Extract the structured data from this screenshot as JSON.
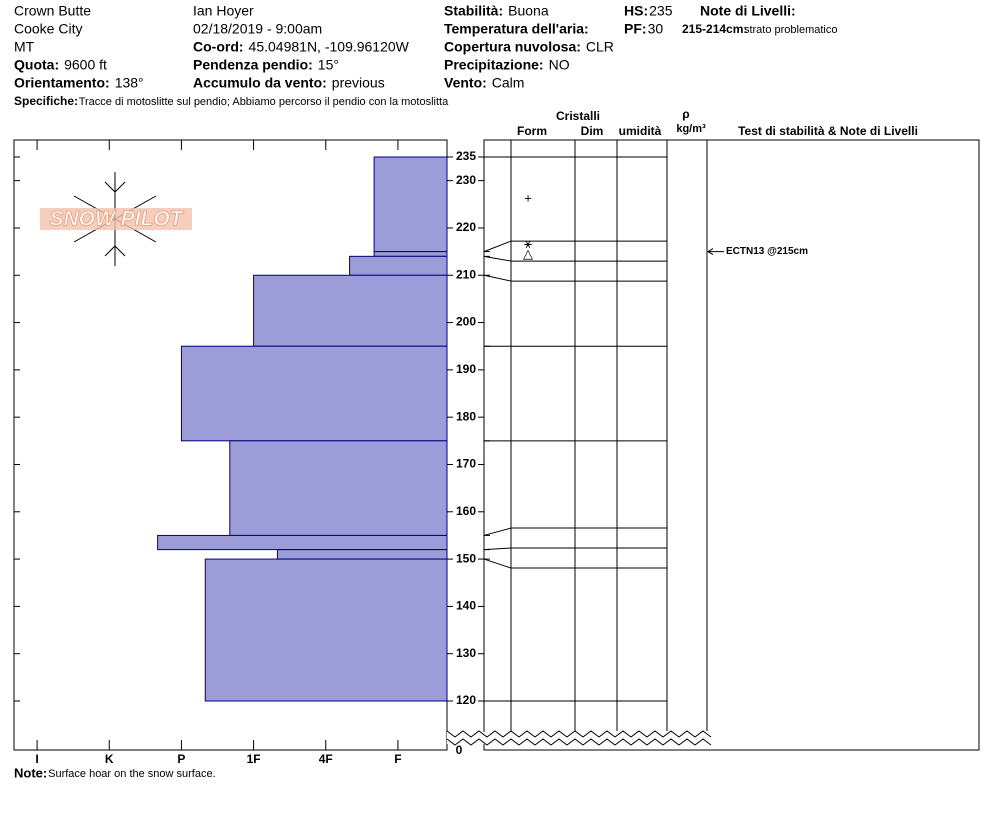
{
  "header": {
    "columns": [
      [
        {
          "value": "Crown Butte"
        },
        {
          "value": "Cooke City"
        },
        {
          "value": "MT"
        },
        {
          "label": "Quota:",
          "value": "9600 ft"
        },
        {
          "label": "Orientamento:",
          "value": "138°"
        }
      ],
      [
        {
          "value": "Ian Hoyer"
        },
        {
          "value": "02/18/2019 - 9:00am"
        },
        {
          "label": "Co-ord:",
          "value": "45.04981N, -109.96120W"
        },
        {
          "label": "Pendenza pendio:",
          "value": "15°"
        },
        {
          "label": "Accumulo da vento:",
          "value": "previous"
        }
      ],
      [
        {
          "label": "Stabilità:",
          "value": "Buona"
        },
        {
          "label": "Temperatura dell'aria:"
        },
        {
          "label": "Copertura nuvolosa:",
          "value": "CLR"
        },
        {
          "label": "Precipitazione:",
          "value": "NO"
        },
        {
          "label": "Vento:",
          "value": "Calm"
        }
      ],
      [
        {
          "label": "HS:",
          "value": "235"
        },
        {
          "label": "PF:",
          "value": "30"
        }
      ]
    ],
    "notes_title": "Note di Livelli:",
    "layer_note": {
      "label": "215-214cm:",
      "value": "strato problematico"
    },
    "specifics": {
      "label": "Specifiche:",
      "value": "Tracce di motoslitte sul pendio; Abbiamo percorso il pendio con la motoslitta"
    }
  },
  "logo": "SNOW PILOT",
  "chart_data": {
    "type": "snow_profile",
    "column_headers": {
      "crystals": "Cristalli",
      "form": "Form",
      "size": "Dim",
      "moisture": "umidità",
      "density": "ρ",
      "density_unit": "kg/m³",
      "tests": "Test di stabilità & Note di Livelli"
    },
    "layers": {
      "top": [
        235,
        215,
        214,
        210,
        195,
        175,
        155,
        152,
        150
      ],
      "bottom": [
        215,
        214,
        210,
        195,
        175,
        155,
        152,
        150,
        120
      ],
      "hardness": [
        1.33,
        1.33,
        1.67,
        3,
        4,
        3.33,
        4.33,
        2.67,
        3.67
      ],
      "form": [
        "+",
        "⚹△",
        null,
        null,
        null,
        null,
        null,
        null,
        null
      ]
    },
    "color": "#9c9cd8",
    "edge_color": "#000080",
    "ylim": [
      120,
      235
    ],
    "yticks": [
      120,
      130,
      140,
      150,
      160,
      170,
      180,
      190,
      200,
      210,
      220,
      230,
      235
    ],
    "bottom_tick": 0,
    "xlim": [
      6.32,
      0.32
    ],
    "xticks": [
      {
        "value": 6,
        "label": "I"
      },
      {
        "value": 5,
        "label": "K"
      },
      {
        "value": 4,
        "label": "P"
      },
      {
        "value": 3,
        "label": "1F"
      },
      {
        "value": 2,
        "label": "4F"
      },
      {
        "value": 1,
        "label": "F"
      }
    ],
    "tests": [
      {
        "label": "ECTN13 @215cm",
        "depth": 215
      }
    ],
    "note": {
      "label": "Note:",
      "value": "Surface hoar on the snow surface."
    }
  }
}
